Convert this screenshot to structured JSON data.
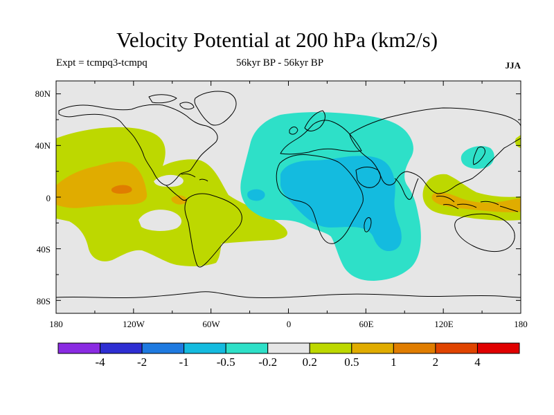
{
  "title": "Velocity Potential at 200 hPa (km2/s)",
  "subtitle_left": "Expt = tcmpq3-tcmpq",
  "subtitle_center": "56kyr BP - 56kyr BP",
  "season": "JJA",
  "map": {
    "projection": "cylindrical equidistant",
    "lon_ticks": [
      "180",
      "120W",
      "60W",
      "0",
      "60E",
      "120E",
      "180"
    ],
    "lat_ticks": [
      "80N",
      "40N",
      "0",
      "40S",
      "80S"
    ],
    "lat_range": [
      -90,
      90
    ],
    "lon_range": [
      -180,
      180
    ]
  },
  "colorbar": {
    "colors": [
      "#8a2be2",
      "#2e2ed2",
      "#1e7ae0",
      "#14bbdf",
      "#2ee0c8",
      "#e6e6e6",
      "#bdd800",
      "#e0ac00",
      "#e07d00",
      "#e04400",
      "#e00000"
    ],
    "labels": [
      "-4",
      "-2",
      "-1",
      "-0.5",
      "-0.2",
      "0.2",
      "0.5",
      "1",
      "2",
      "4"
    ]
  }
}
